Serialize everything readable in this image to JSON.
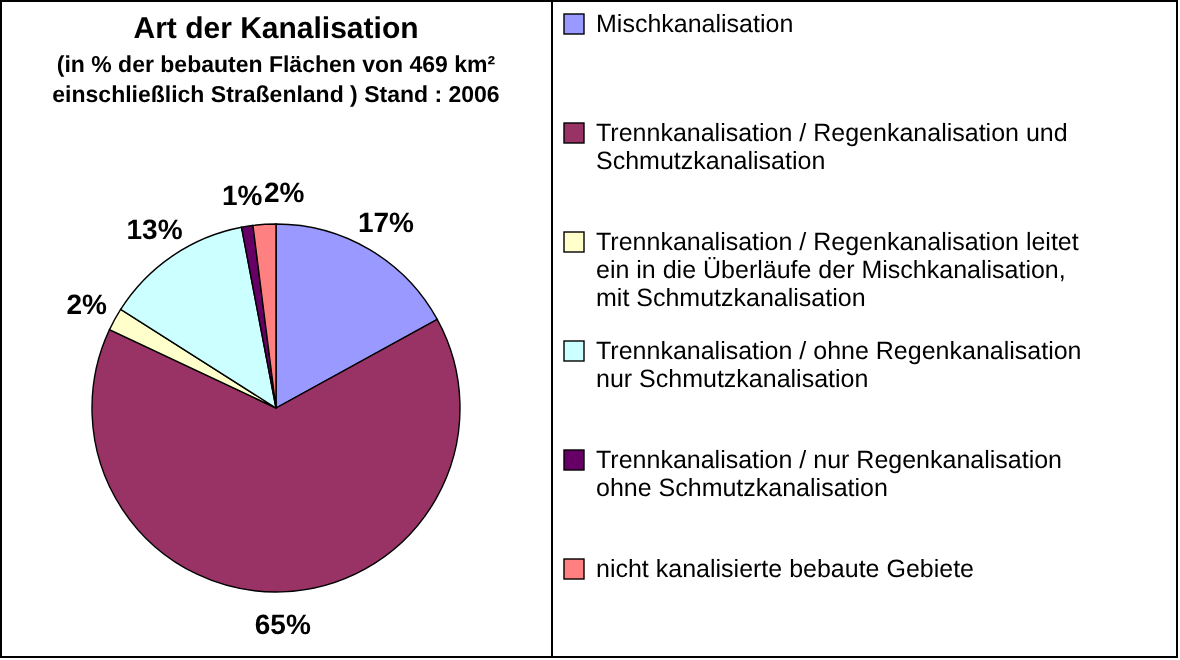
{
  "chart_data": {
    "type": "pie",
    "title": "Art der Kanalisation",
    "subtitle": "(in % der bebauten Flächen von 469 km² einschließlich Straßenland ) Stand : 2006",
    "categories": [
      "Mischkanalisation",
      "Trennkanalisation / Regenkanalisation und Schmutzkanalisation",
      "Trennkanalisation / Regenkanalisation leitet ein in die Überläufe der Mischkanalisation, mit Schmutzkanalisation",
      "Trennkanalisation / ohne Regenkanalisation nur Schmutzkanalisation",
      "Trennkanalisation / nur Regenkanalisation ohne Schmutzkanalisation",
      "nicht kanalisierte bebaute Gebiete"
    ],
    "values": [
      17,
      65,
      2,
      13,
      1,
      2
    ],
    "value_labels": [
      "17%",
      "65%",
      "2%",
      "13%",
      "1%",
      "2%"
    ],
    "colors": [
      "#9999ff",
      "#993366",
      "#ffffcc",
      "#ccffff",
      "#660066",
      "#ff8080"
    ],
    "legend": "right"
  }
}
